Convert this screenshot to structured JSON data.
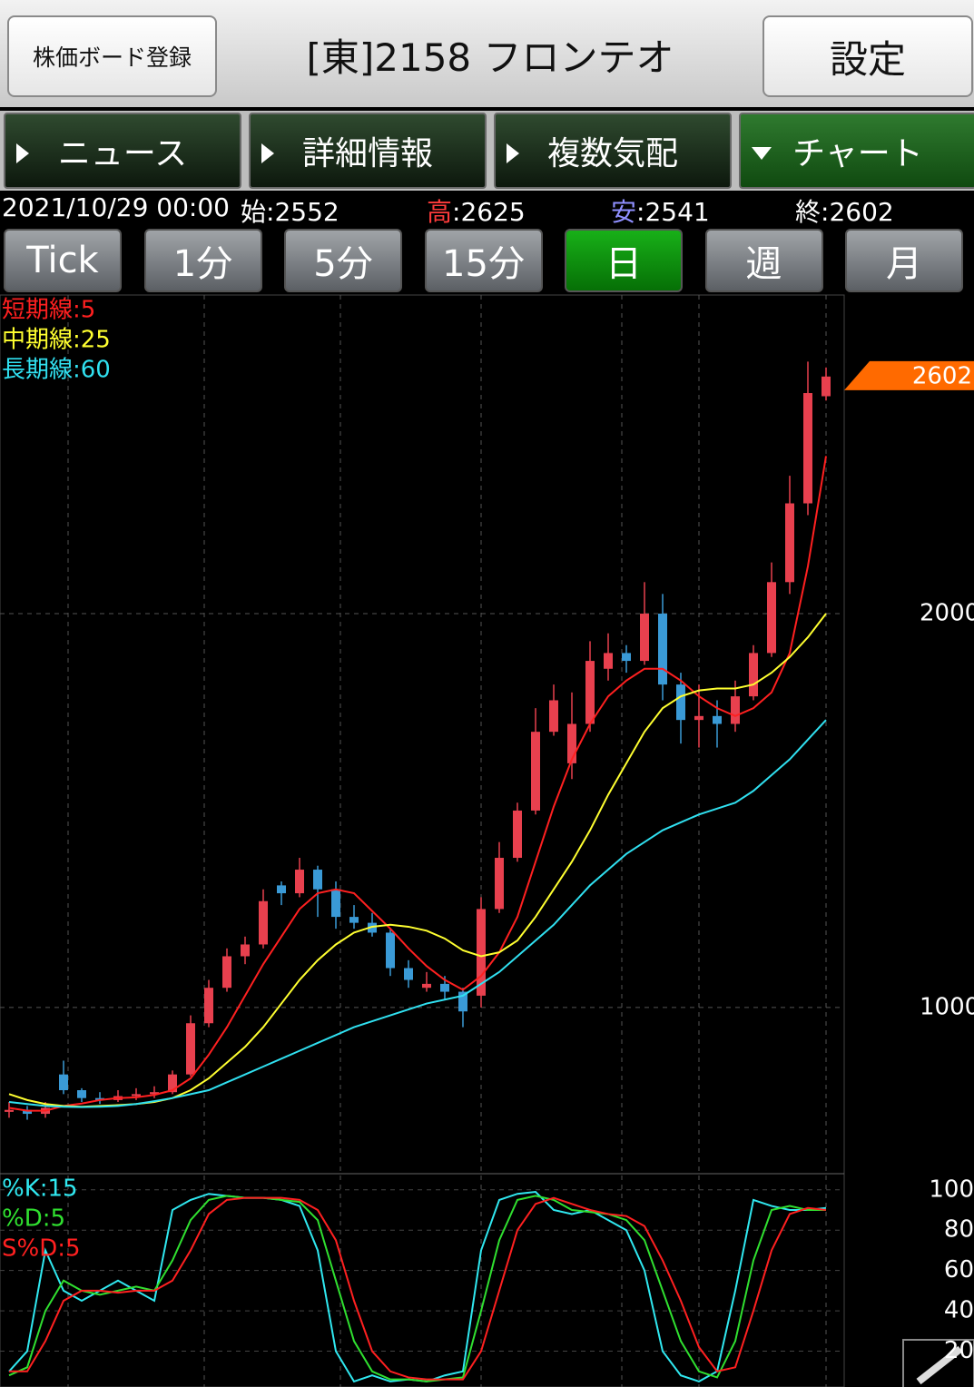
{
  "header": {
    "board_button": "株価ボード登録",
    "title": "[東]2158 フロンテオ",
    "settings_button": "設定"
  },
  "tabs": [
    "ニュース",
    "詳細情報",
    "複数気配",
    "チャート"
  ],
  "active_tab": 3,
  "info": {
    "date": "2021/10/29 00:00",
    "items": [
      {
        "label": "始",
        "value": 2552,
        "label_color": "#ffffff"
      },
      {
        "label": "高",
        "value": 2625,
        "label_color": "#ff3b3b"
      },
      {
        "label": "安",
        "value": 2541,
        "label_color": "#8f8fff"
      },
      {
        "label": "終",
        "value": 2602,
        "label_color": "#ffffff"
      }
    ],
    "separator": ":"
  },
  "periods": [
    "Tick",
    "1分",
    "5分",
    "15分",
    "日",
    "週",
    "月"
  ],
  "active_period": 4,
  "chart_data": [
    {
      "type": "candlestick",
      "up_color": "#e8404e",
      "down_color": "#3a9ad6",
      "ylim": [
        578,
        2809
      ],
      "yticks": [
        1000,
        2000
      ],
      "grid": true,
      "last_price": 2602,
      "last_price_color": "#ff6a00",
      "ohlc": [
        [
          735,
          760,
          720,
          740
        ],
        [
          740,
          750,
          715,
          730
        ],
        [
          730,
          760,
          720,
          745
        ],
        [
          830,
          865,
          780,
          790
        ],
        [
          790,
          795,
          760,
          770
        ],
        [
          770,
          785,
          755,
          765
        ],
        [
          765,
          790,
          760,
          775
        ],
        [
          775,
          795,
          765,
          780
        ],
        [
          780,
          800,
          770,
          785
        ],
        [
          785,
          840,
          780,
          830
        ],
        [
          830,
          980,
          825,
          960
        ],
        [
          960,
          1070,
          950,
          1050
        ],
        [
          1050,
          1150,
          1040,
          1130
        ],
        [
          1130,
          1180,
          1110,
          1160
        ],
        [
          1160,
          1300,
          1150,
          1270
        ],
        [
          1310,
          1320,
          1260,
          1290
        ],
        [
          1290,
          1380,
          1280,
          1350
        ],
        [
          1350,
          1360,
          1230,
          1300
        ],
        [
          1300,
          1320,
          1200,
          1230
        ],
        [
          1230,
          1260,
          1200,
          1215
        ],
        [
          1215,
          1240,
          1180,
          1190
        ],
        [
          1190,
          1200,
          1080,
          1100
        ],
        [
          1100,
          1120,
          1050,
          1070
        ],
        [
          1050,
          1090,
          1040,
          1060
        ],
        [
          1060,
          1080,
          1020,
          1040
        ],
        [
          1040,
          1050,
          950,
          990
        ],
        [
          1030,
          1280,
          1000,
          1250
        ],
        [
          1250,
          1420,
          1240,
          1380
        ],
        [
          1380,
          1520,
          1370,
          1500
        ],
        [
          1500,
          1760,
          1490,
          1700
        ],
        [
          1700,
          1820,
          1690,
          1780
        ],
        [
          1620,
          1800,
          1580,
          1720
        ],
        [
          1720,
          1930,
          1700,
          1880
        ],
        [
          1860,
          1950,
          1830,
          1900
        ],
        [
          1900,
          1920,
          1850,
          1880
        ],
        [
          1880,
          2080,
          1870,
          2000
        ],
        [
          2000,
          2050,
          1780,
          1820
        ],
        [
          1820,
          1850,
          1670,
          1730
        ],
        [
          1730,
          1820,
          1660,
          1740
        ],
        [
          1740,
          1780,
          1660,
          1720
        ],
        [
          1720,
          1830,
          1700,
          1790
        ],
        [
          1790,
          1920,
          1780,
          1900
        ],
        [
          1900,
          2130,
          1890,
          2080
        ],
        [
          2080,
          2350,
          2050,
          2280
        ],
        [
          2280,
          2640,
          2250,
          2560
        ],
        [
          2552,
          2625,
          2541,
          2602
        ]
      ],
      "series": [
        {
          "name": "短期線:5",
          "color": "#ff2020",
          "values": [
            745,
            738,
            738,
            750,
            756,
            765,
            770,
            772,
            778,
            790,
            820,
            880,
            950,
            1030,
            1110,
            1180,
            1250,
            1290,
            1300,
            1290,
            1245,
            1200,
            1150,
            1105,
            1070,
            1045,
            1080,
            1140,
            1230,
            1370,
            1510,
            1630,
            1720,
            1790,
            1830,
            1860,
            1860,
            1830,
            1790,
            1760,
            1740,
            1760,
            1800,
            1900,
            2120,
            2400
          ]
        },
        {
          "name": "中期線:25",
          "color": "#ffff30",
          "values": [
            780,
            765,
            755,
            750,
            748,
            750,
            752,
            755,
            760,
            770,
            790,
            820,
            860,
            900,
            950,
            1010,
            1070,
            1120,
            1160,
            1190,
            1205,
            1210,
            1205,
            1195,
            1175,
            1145,
            1130,
            1140,
            1170,
            1230,
            1300,
            1370,
            1450,
            1540,
            1620,
            1700,
            1760,
            1790,
            1805,
            1810,
            1810,
            1820,
            1850,
            1890,
            1940,
            2000
          ]
        },
        {
          "name": "長期線:60",
          "color": "#30e0f0",
          "values": [
            760,
            755,
            750,
            748,
            747,
            748,
            750,
            755,
            762,
            770,
            780,
            790,
            810,
            830,
            850,
            870,
            890,
            910,
            930,
            950,
            965,
            980,
            995,
            1010,
            1020,
            1030,
            1060,
            1090,
            1130,
            1170,
            1210,
            1260,
            1310,
            1350,
            1390,
            1420,
            1450,
            1470,
            1490,
            1505,
            1520,
            1550,
            1590,
            1630,
            1680,
            1730
          ]
        }
      ]
    },
    {
      "type": "line",
      "ylim": [
        0,
        108
      ],
      "yticks": [
        20,
        40,
        60,
        80,
        100
      ],
      "grid": true,
      "series": [
        {
          "name": "%K:15",
          "color": "#30e8f0",
          "values": [
            10,
            20,
            70,
            50,
            45,
            50,
            55,
            50,
            45,
            90,
            95,
            98,
            97,
            96,
            96,
            95,
            92,
            70,
            20,
            5,
            8,
            5,
            6,
            5,
            8,
            10,
            70,
            95,
            98,
            99,
            90,
            88,
            90,
            85,
            80,
            60,
            20,
            8,
            5,
            10,
            50,
            95,
            92,
            90,
            90,
            91
          ]
        },
        {
          "name": "%D:5",
          "color": "#30e030",
          "values": [
            8,
            12,
            40,
            55,
            50,
            48,
            50,
            52,
            50,
            65,
            85,
            95,
            97,
            96,
            96,
            95,
            94,
            85,
            55,
            25,
            10,
            6,
            6,
            5,
            6,
            7,
            40,
            75,
            95,
            97,
            95,
            90,
            89,
            88,
            85,
            75,
            50,
            25,
            10,
            7,
            25,
            65,
            90,
            92,
            90,
            90
          ]
        },
        {
          "name": "S%D:5",
          "color": "#ff2020",
          "values": [
            10,
            10,
            25,
            45,
            50,
            50,
            49,
            50,
            50,
            55,
            70,
            88,
            95,
            96,
            96,
            96,
            95,
            90,
            75,
            45,
            20,
            10,
            7,
            6,
            6,
            6,
            20,
            50,
            80,
            93,
            96,
            93,
            90,
            88,
            87,
            82,
            65,
            45,
            22,
            10,
            12,
            40,
            70,
            88,
            91,
            90
          ]
        }
      ]
    }
  ]
}
